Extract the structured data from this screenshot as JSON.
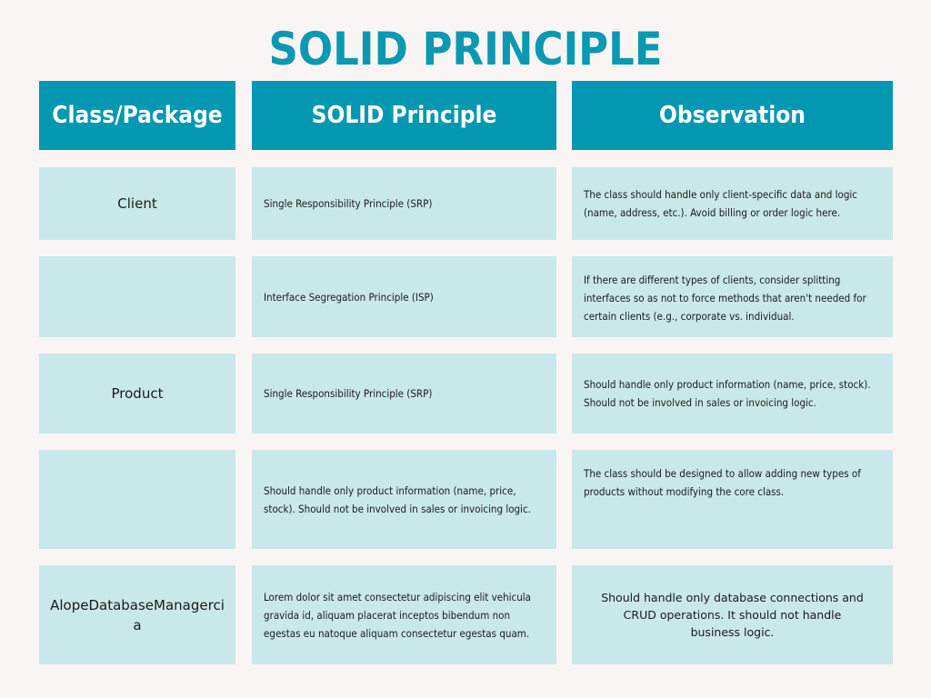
{
  "title": "SOLID PRINCIPLE",
  "headers": {
    "col1": "Class/Package",
    "col2": "SOLID Principle",
    "col3": "Observation"
  },
  "rows": [
    {
      "class_name": "Client",
      "principle": "Single Responsibility Principle (SRP)",
      "observation": "The class should handle only client-specific data and logic (name, address, etc.). Avoid billing or order logic here."
    },
    {
      "class_name": "",
      "principle": "Interface Segregation Principle (ISP)",
      "observation": "If there are different types of clients, consider splitting interfaces so as not to force methods that aren't needed for certain clients (e.g., corporate vs. individual."
    },
    {
      "class_name": "Product",
      "principle": "Single Responsibility Principle (SRP)",
      "observation": "Should handle only product information (name, price, stock). Should not be involved in sales or invoicing logic."
    },
    {
      "class_name": "",
      "principle": "Should handle only product information (name, price, stock). Should not be involved in sales or invoicing logic.",
      "observation": "The class should be designed to allow adding new types of products without modifying the core class."
    },
    {
      "class_name": "AlopeDatabaseManagercia",
      "principle": "Lorem dolor sit amet consectetur adipiscing elit vehicula gravida id, aliquam placerat inceptos bibendum non egestas eu natoque aliquam consectetur egestas quam.",
      "observation": "Should handle only database connections and CRUD operations. It should not handle business logic."
    }
  ]
}
